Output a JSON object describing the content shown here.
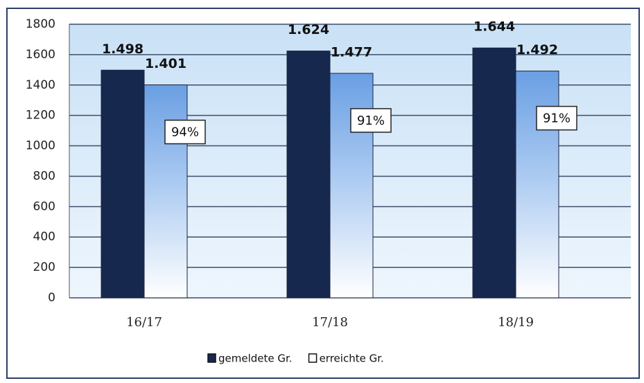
{
  "chart_data": {
    "type": "bar",
    "categories": [
      "16/17",
      "17/18",
      "18/19"
    ],
    "series": [
      {
        "name": "gemeldete Gr.",
        "color": "#17284f",
        "values": [
          1498,
          1624,
          1644
        ],
        "value_labels": [
          "1.498",
          "1.624",
          "1.644"
        ]
      },
      {
        "name": "erreichte Gr.",
        "color": "#6a9fe3",
        "values": [
          1401,
          1477,
          1492
        ],
        "value_labels": [
          "1.401",
          "1.477",
          "1.492"
        ]
      }
    ],
    "annotations": [
      "94%",
      "91%",
      "91%"
    ],
    "ylim": [
      0,
      1800
    ],
    "yticks": [
      0,
      200,
      400,
      600,
      800,
      1000,
      1200,
      1400,
      1600,
      1800
    ],
    "grid": true,
    "legend": "bottom"
  }
}
